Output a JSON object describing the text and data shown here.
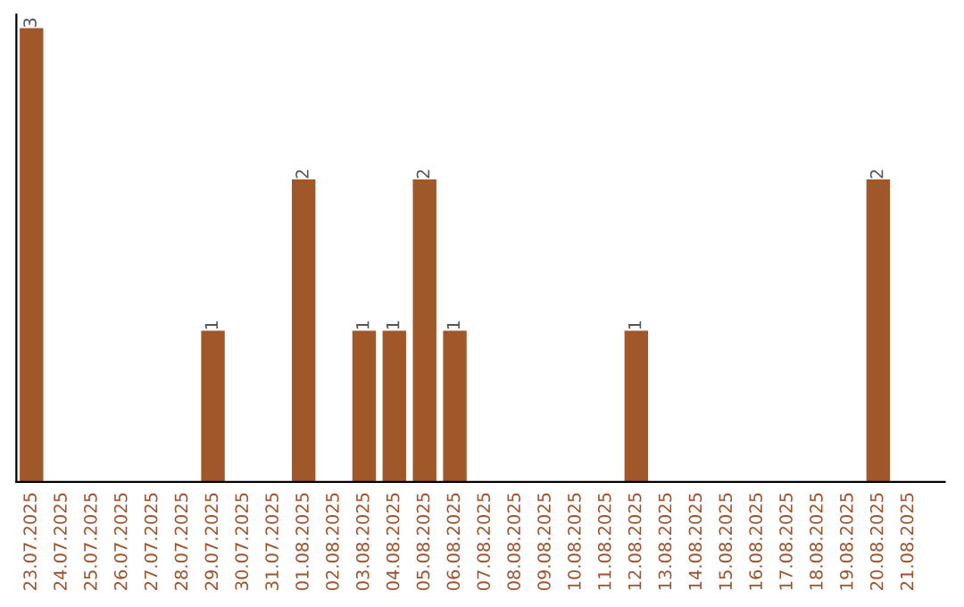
{
  "chart_data": {
    "type": "bar",
    "categories": [
      "23.07.2025",
      "24.07.2025",
      "25.07.2025",
      "26.07.2025",
      "27.07.2025",
      "28.07.2025",
      "29.07.2025",
      "30.07.2025",
      "31.07.2025",
      "01.08.2025",
      "02.08.2025",
      "03.08.2025",
      "04.08.2025",
      "05.08.2025",
      "06.08.2025",
      "07.08.2025",
      "08.08.2025",
      "09.08.2025",
      "10.08.2025",
      "11.08.2025",
      "12.08.2025",
      "13.08.2025",
      "14.08.2025",
      "15.08.2025",
      "16.08.2025",
      "17.08.2025",
      "18.08.2025",
      "19.08.2025",
      "20.08.2025",
      "21.08.2025"
    ],
    "values": [
      3,
      0,
      0,
      0,
      0,
      0,
      1,
      0,
      0,
      2,
      0,
      1,
      1,
      2,
      1,
      0,
      0,
      0,
      0,
      0,
      1,
      0,
      0,
      0,
      0,
      0,
      0,
      0,
      2,
      0
    ],
    "color": "#a0582a",
    "value_labels": [
      "3",
      null,
      null,
      null,
      null,
      null,
      "1",
      null,
      null,
      "2",
      null,
      "1",
      "1",
      "2",
      "1",
      null,
      null,
      null,
      null,
      null,
      "1",
      null,
      null,
      null,
      null,
      null,
      null,
      null,
      "2",
      null
    ],
    "data_labels": false
  }
}
